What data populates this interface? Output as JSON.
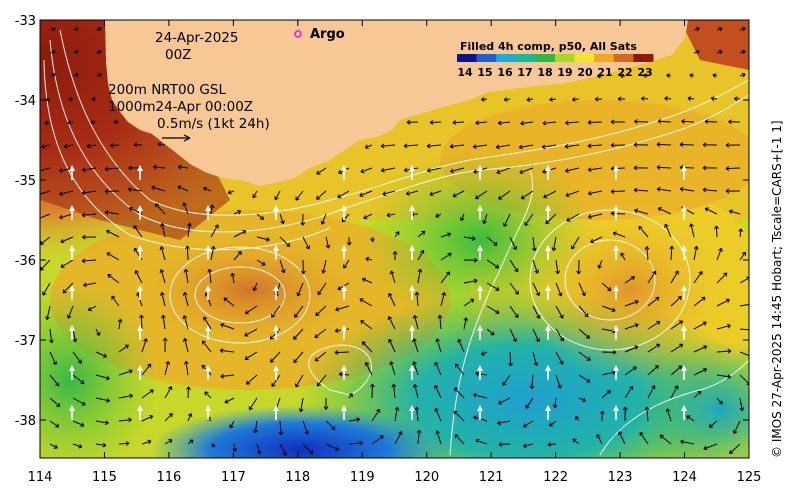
{
  "map": {
    "date_line": "24-Apr-2025",
    "time_line": "00Z",
    "argo_label": "Argo",
    "info_lines": [
      "200m  NRT00 GSL",
      "1000m24-Apr 00:00Z",
      "0.5m/s (1kt 24h)"
    ],
    "colorbar_title": "Filled 4h comp, p50, All Sats",
    "colorbar_ticks": [
      "14",
      "15",
      "16",
      "17",
      "18",
      "19",
      "20",
      "21",
      "22",
      "23"
    ],
    "colorbar_colors": [
      "#0a148c",
      "#1f5fd6",
      "#1fa8d8",
      "#18b89a",
      "#2fb84a",
      "#a6d826",
      "#f0e62a",
      "#f0a820",
      "#d2691e",
      "#8b1a0e"
    ],
    "side_label": "© IMOS 27-Apr-2025 14:45 Hobart; Tscale=CARS+[-1 1]",
    "x_ticks": [
      "114",
      "115",
      "116",
      "117",
      "118",
      "119",
      "120",
      "121",
      "122",
      "123",
      "124",
      "125"
    ],
    "y_ticks": [
      "-33",
      "-34",
      "-35",
      "-36",
      "-37",
      "-38"
    ],
    "land_color": "#f7c896",
    "contour_color": "#ffffff",
    "vector_color": "#000000"
  }
}
